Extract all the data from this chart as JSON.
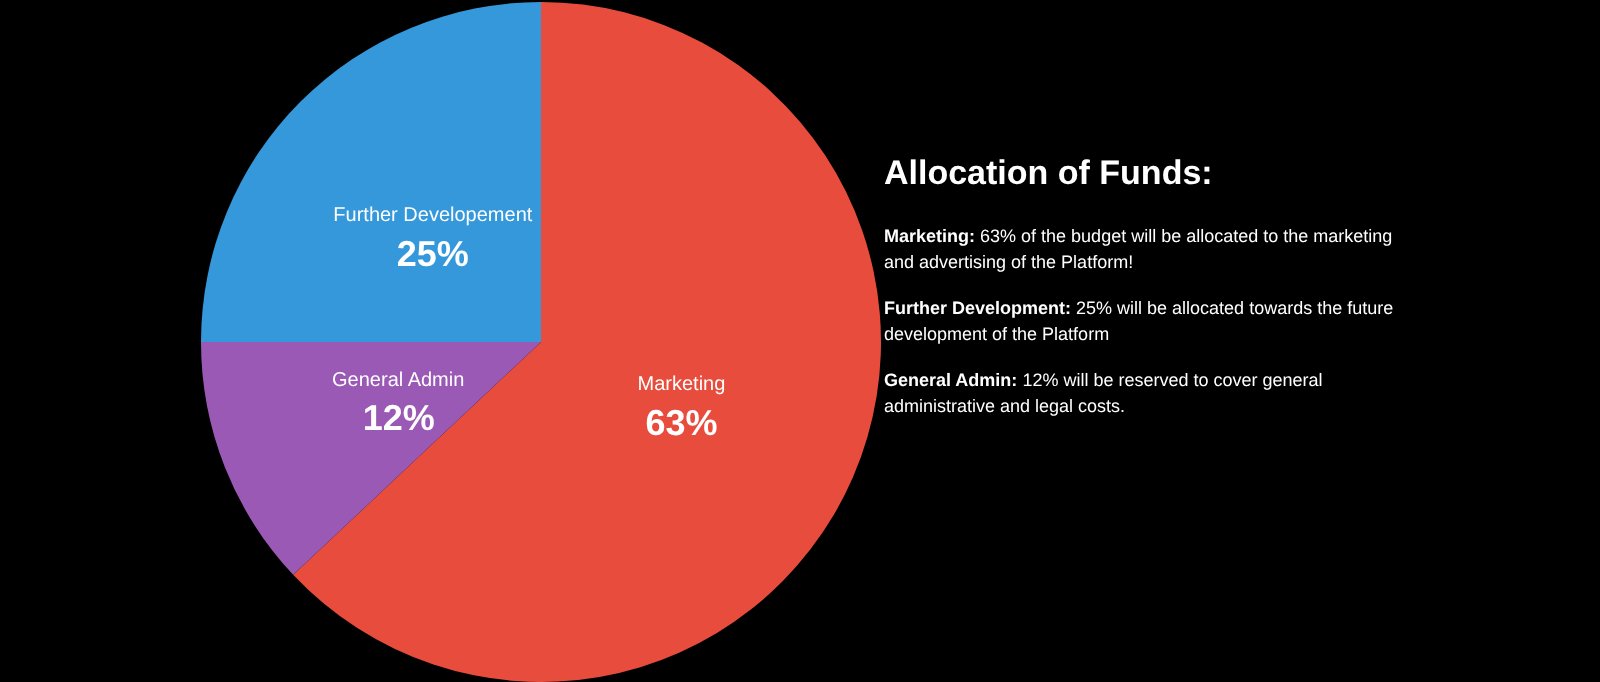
{
  "chart_data": {
    "type": "pie",
    "title": "Allocation of Funds:",
    "categories": [
      "Marketing",
      "General Admin",
      "Further Developement"
    ],
    "values": [
      63,
      12,
      25
    ],
    "value_labels": [
      "63%",
      "12%",
      "25%"
    ],
    "colors": [
      "#e74c3c",
      "#9b59b6",
      "#3498db"
    ],
    "annotations": [
      "Marketing: 63% of the budget will be allocated to the marketing and advertising of the Platform!",
      "Further Development: 25% will be allocated towards the future development of the Platform",
      "General Admin: 12% will be reserved to cover general administrative and legal costs."
    ]
  }
}
